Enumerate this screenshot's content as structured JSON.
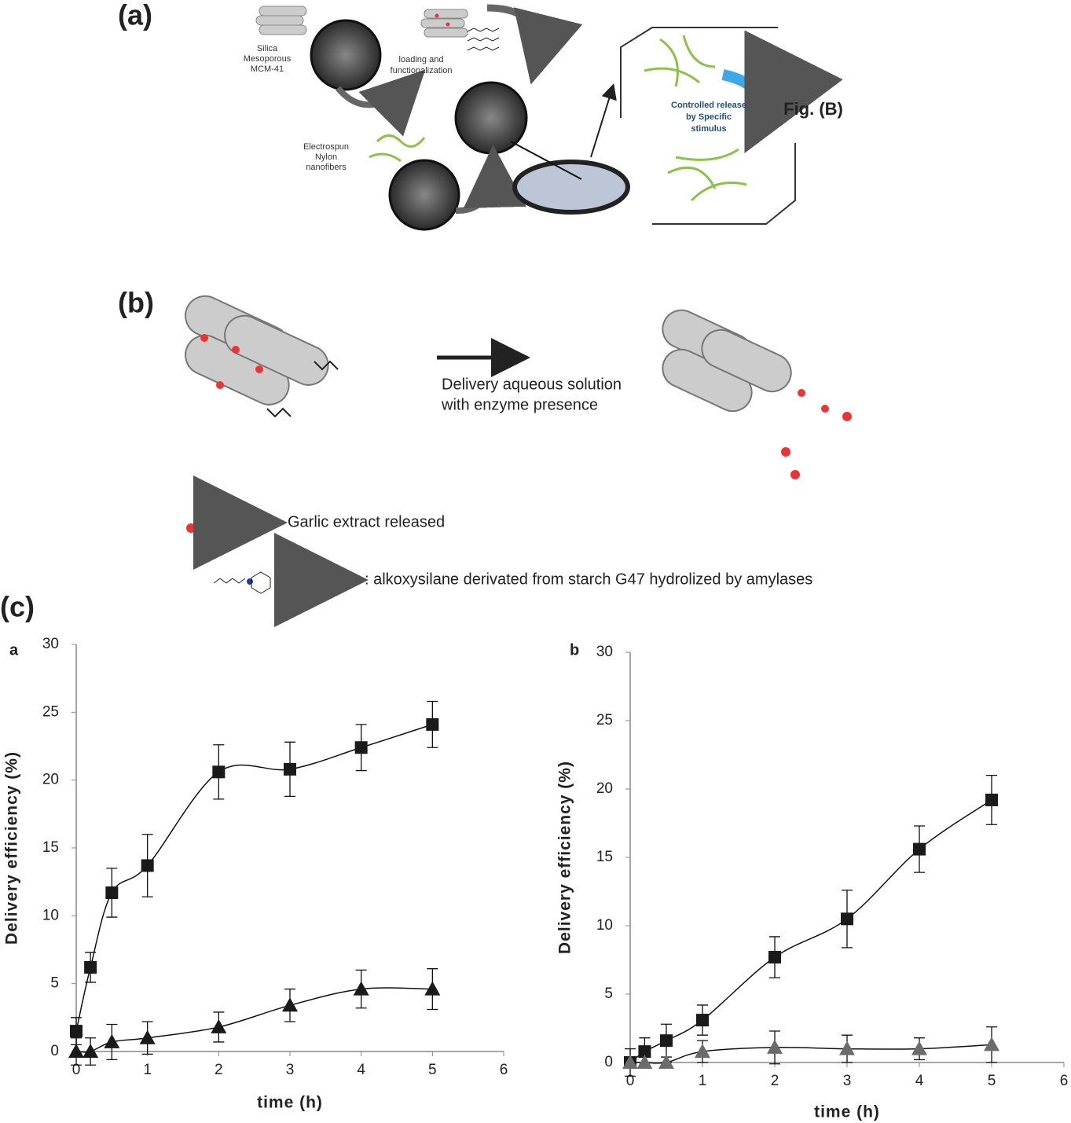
{
  "figure": {
    "panel_a": {
      "label": "(a)",
      "silica": [
        "Silica",
        "Mesoporous",
        "MCM-41"
      ],
      "loading": [
        "loading and",
        "functionalization"
      ],
      "nylon": [
        "Electrospun",
        "Nylon",
        "nanofibers"
      ],
      "release": [
        "Controlled release",
        "by Specific",
        "stimulus"
      ],
      "fig_b": "Fig. (B)"
    },
    "panel_b": {
      "label": "(b)",
      "arrow_text": [
        "Delivery aqueous solution",
        "with enzyme presence"
      ],
      "legend_garlic": "Garlic extract released",
      "legend_alkoxy": ": alkoxysilane derivated from starch G47 hydrolized by amylases"
    },
    "panel_c": {
      "label": "(c)"
    }
  },
  "chart_data": [
    {
      "type": "scatter",
      "title": "a",
      "xlabel": "time (h)",
      "ylabel": "Delivery efficiency (%)",
      "xlim": [
        0,
        6
      ],
      "xticks": [
        0,
        1,
        2,
        3,
        4,
        5,
        6
      ],
      "ylim": [
        0,
        30
      ],
      "yticks": [
        0,
        5,
        10,
        15,
        20,
        25,
        30
      ],
      "x": [
        0,
        0.2,
        0.5,
        1,
        2,
        3,
        4,
        5
      ],
      "series": [
        {
          "marker": "square",
          "color": "#1a1a1a",
          "values": [
            1.5,
            6.2,
            11.7,
            13.7,
            20.6,
            20.8,
            22.4,
            24.1
          ],
          "errors": [
            1.0,
            1.1,
            1.8,
            2.3,
            2.0,
            2.0,
            1.7,
            1.7
          ]
        },
        {
          "marker": "triangle",
          "color": "#1a1a1a",
          "values": [
            0,
            0,
            0.7,
            1.0,
            1.8,
            3.4,
            4.6,
            4.6
          ],
          "errors": [
            1.0,
            1.0,
            1.3,
            1.2,
            1.1,
            1.2,
            1.4,
            1.5
          ]
        }
      ]
    },
    {
      "type": "scatter",
      "title": "b",
      "xlabel": "time (h)",
      "ylabel": "Delivery efficiency (%)",
      "xlim": [
        0,
        6
      ],
      "xticks": [
        0,
        1,
        2,
        3,
        4,
        5,
        6
      ],
      "ylim": [
        0,
        30
      ],
      "yticks": [
        0,
        5,
        10,
        15,
        20,
        25,
        30
      ],
      "x": [
        0,
        0.2,
        0.5,
        1,
        2,
        3,
        4,
        5
      ],
      "series": [
        {
          "marker": "square",
          "color": "#1a1a1a",
          "values": [
            0,
            0.8,
            1.6,
            3.1,
            7.7,
            10.5,
            15.6,
            19.2
          ],
          "errors": [
            1.0,
            1.0,
            1.2,
            1.1,
            1.5,
            2.1,
            1.7,
            1.8
          ]
        },
        {
          "marker": "triangle",
          "color": "#6b6b6b",
          "values": [
            0,
            0,
            0,
            0.8,
            1.1,
            1.0,
            1.0,
            1.3
          ],
          "errors": [
            0,
            0,
            0,
            0.8,
            1.2,
            1.0,
            0.8,
            1.3
          ]
        }
      ]
    }
  ]
}
